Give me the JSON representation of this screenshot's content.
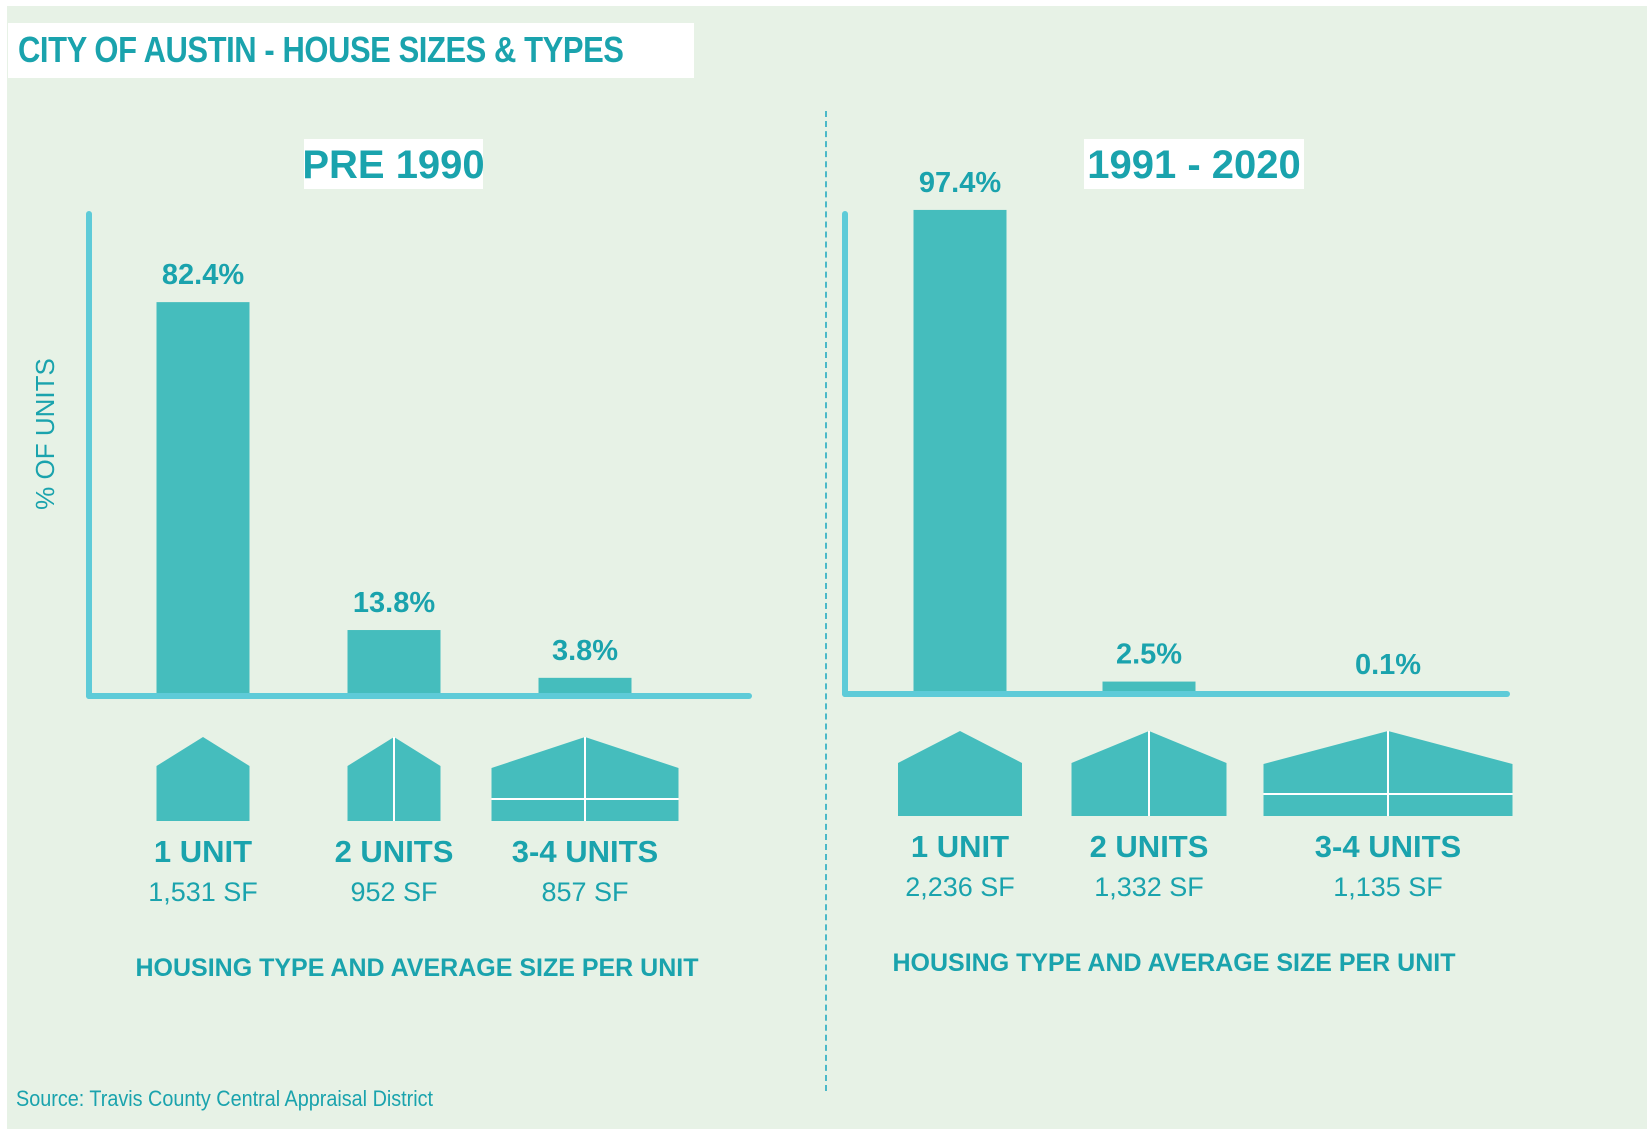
{
  "title": "CITY OF AUSTIN - HOUSE SIZES & TYPES",
  "source": "Source: Travis County Central Appraisal District",
  "colors": {
    "bar": "#45bdbd",
    "axis": "#5ecbd8",
    "text": "#1aa3ad",
    "background": "#e7f2e6"
  },
  "chart_data": [
    {
      "type": "bar",
      "title": "PRE 1990",
      "ylabel": "% OF UNITS",
      "xlabel": "HOUSING TYPE AND AVERAGE SIZE PER UNIT",
      "ylim": [
        0,
        100
      ],
      "categories": [
        "1 UNIT",
        "2 UNITS",
        "3-4 UNITS"
      ],
      "values": [
        82.4,
        13.8,
        3.8
      ],
      "value_labels": [
        "82.4%",
        "13.8%",
        "3.8%"
      ],
      "sizes": [
        "1,531 SF",
        "952 SF",
        "857 SF"
      ],
      "icons": [
        "house-1-unit-icon",
        "house-2-units-icon",
        "house-3-4-units-icon"
      ]
    },
    {
      "type": "bar",
      "title": "1991 - 2020",
      "ylabel": "",
      "xlabel": "HOUSING TYPE AND AVERAGE SIZE PER UNIT",
      "ylim": [
        0,
        100
      ],
      "categories": [
        "1 UNIT",
        "2 UNITS",
        "3-4 UNITS"
      ],
      "values": [
        97.4,
        2.5,
        0.1
      ],
      "value_labels": [
        "97.4%",
        "2.5%",
        "0.1%"
      ],
      "sizes": [
        "2,236 SF",
        "1,332 SF",
        "1,135 SF"
      ],
      "icons": [
        "house-1-unit-icon",
        "house-2-units-icon",
        "house-3-4-units-icon"
      ]
    }
  ]
}
